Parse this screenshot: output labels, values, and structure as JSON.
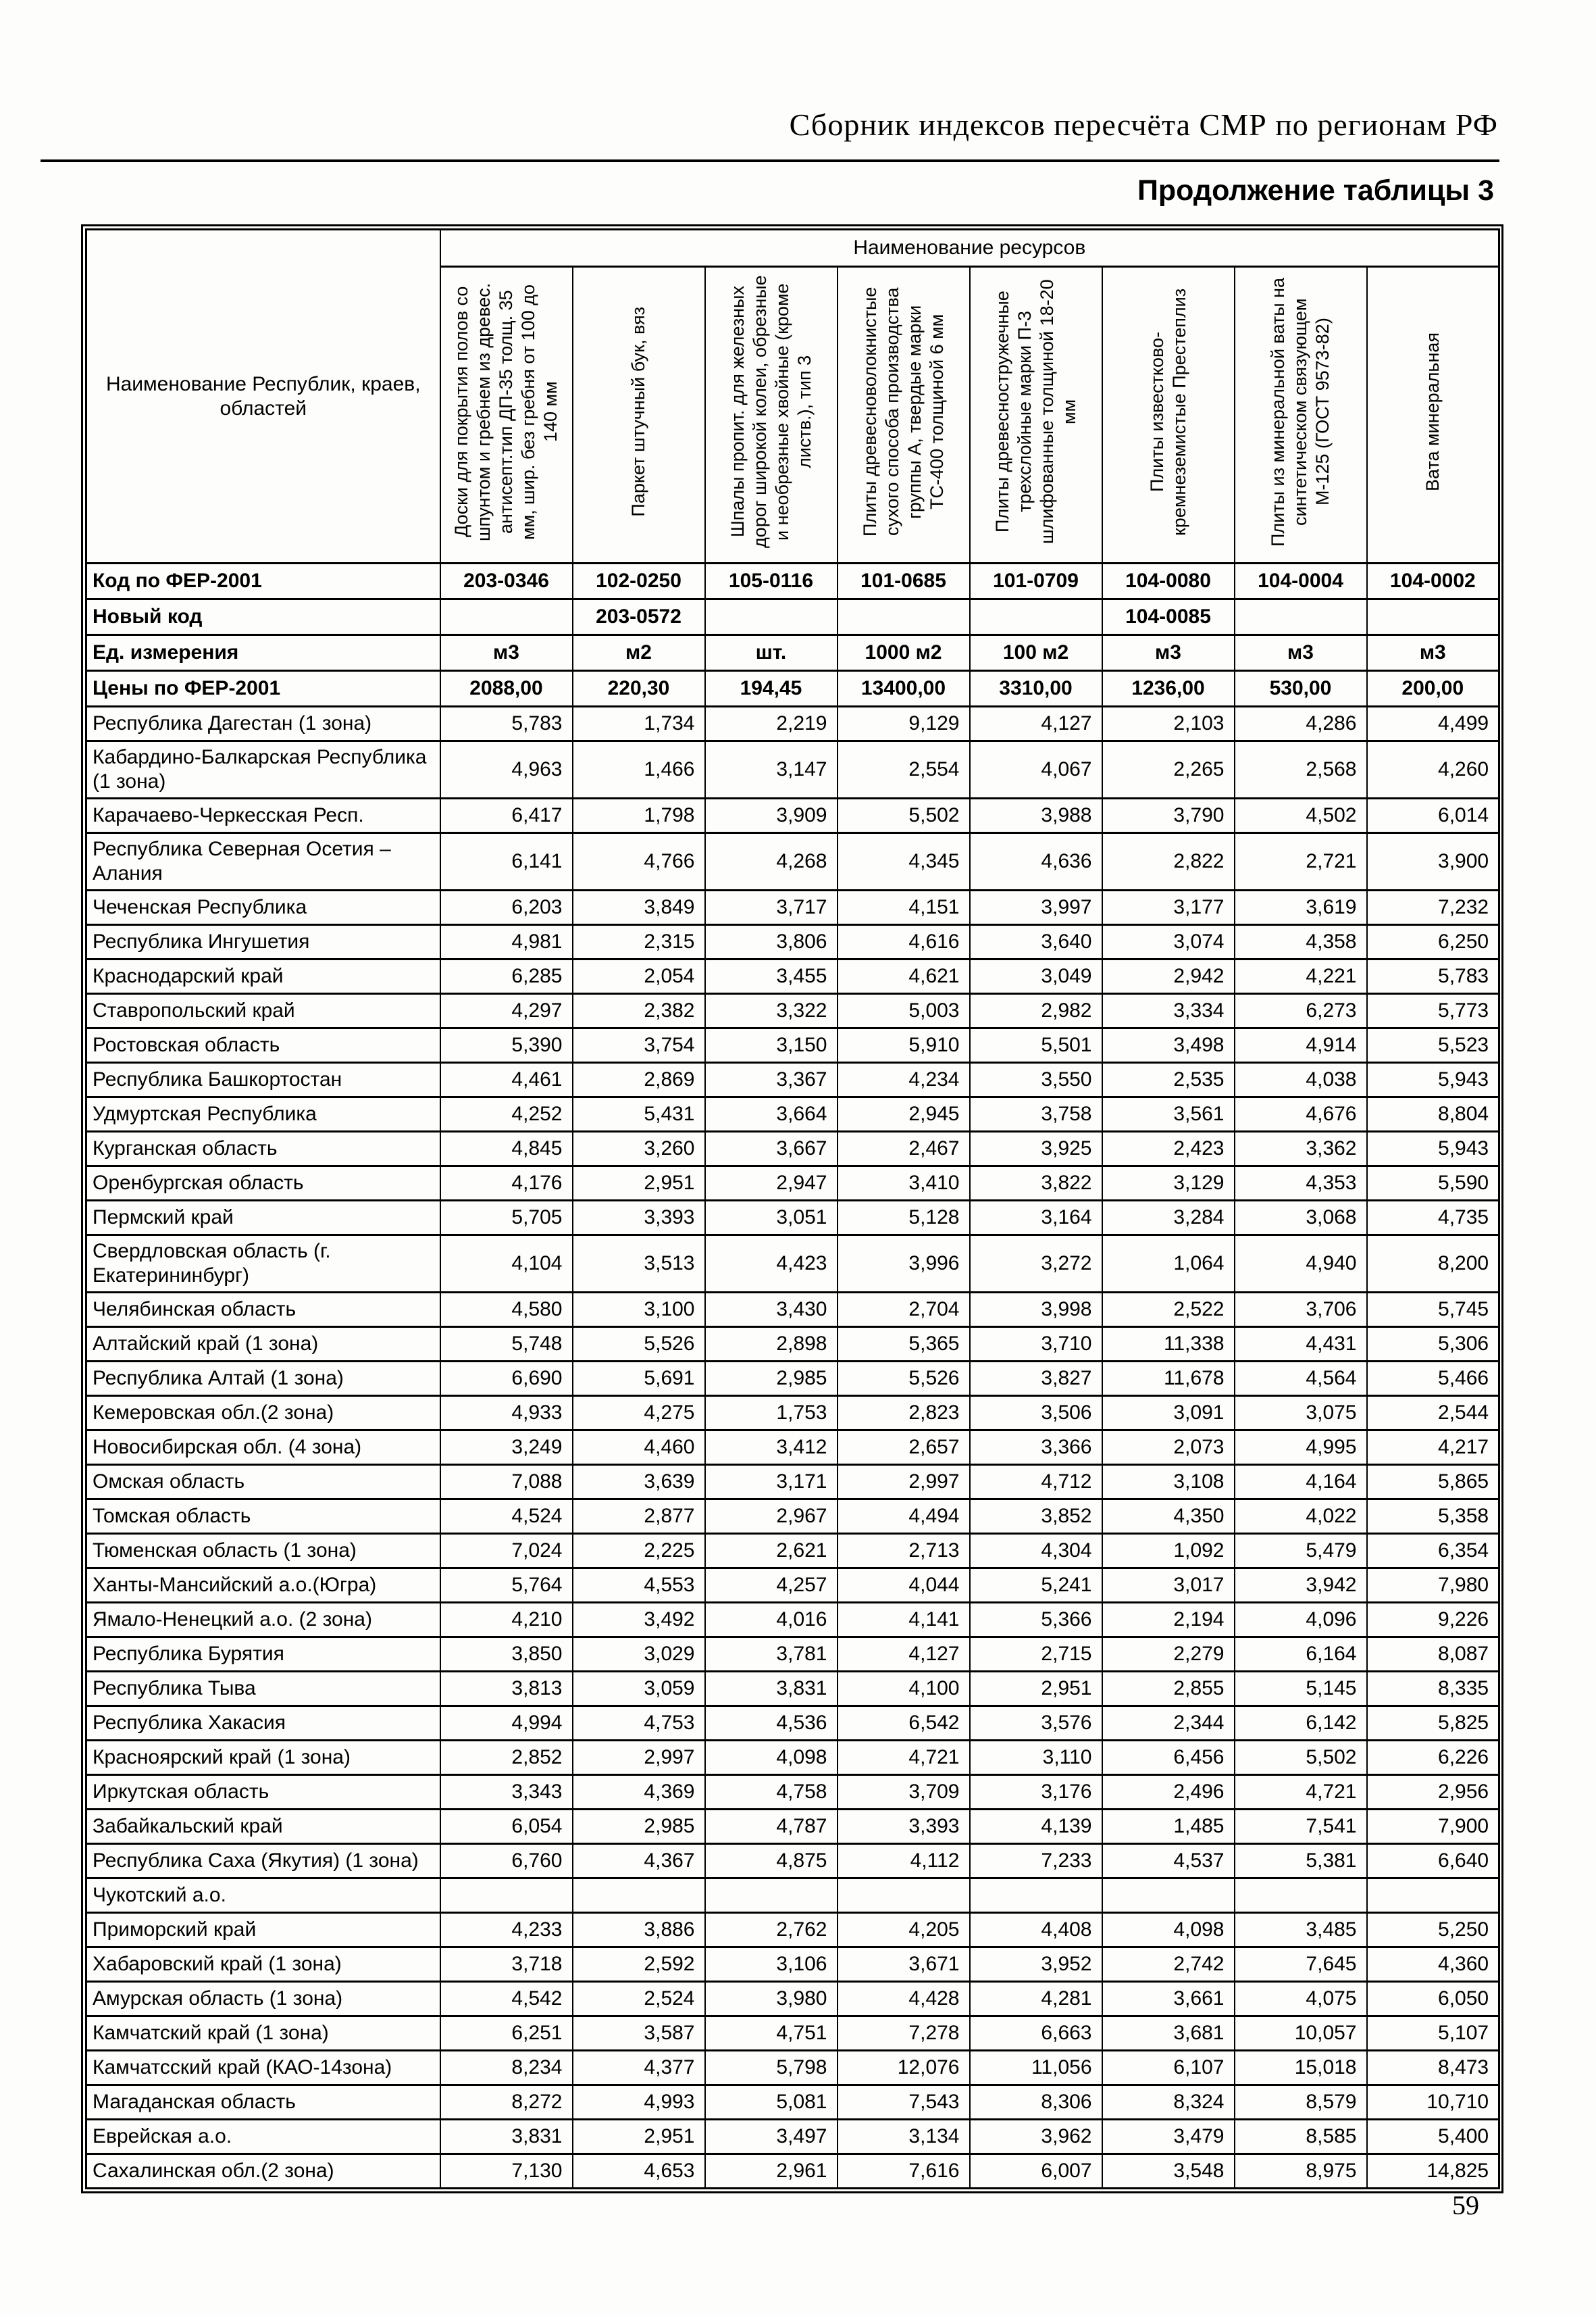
{
  "page": {
    "doc_header": "Сборник индексов пересчёта СМР  по регионам РФ",
    "table_caption": "Продолжение таблицы 3",
    "page_number": "59"
  },
  "table": {
    "region_col_header": "Наименование Республик, краев, областей",
    "resources_header": "Наименование ресурсов",
    "resource_columns": [
      "Доски для покрытия полов со шпунтом и гребнем из древес. антисепт.тип ДП-35 толщ. 35 мм, шир. без гребня от 100 до 140 мм",
      "Паркет штучный бук, вяз",
      "Шпалы пропит. для железных дорог широкой колеи, обрезные и необрезные хвойные (кроме листв.), тип 3",
      "Плиты древесноволокнистые сухого способа производства группы А, твердые марки ТС-400 толщиной 6 мм",
      "Плиты древесностружечные трехслойные марки П-3 шлифованные толщиной 18-20 мм",
      "Плиты известково-кремнеземистые Престеплиз",
      "Плиты из минеральной ваты на синтетическом связующем М-125 (ГОСТ 9573-82)",
      "Вата минеральная"
    ],
    "meta_rows": [
      {
        "label": "Код по ФЕР-2001",
        "values": [
          "203-0346",
          "102-0250",
          "105-0116",
          "101-0685",
          "101-0709",
          "104-0080",
          "104-0004",
          "104-0002"
        ]
      },
      {
        "label": "Новый код",
        "values": [
          "",
          "203-0572",
          "",
          "",
          "",
          "104-0085",
          "",
          ""
        ]
      },
      {
        "label": "Ед. измерения",
        "values": [
          "м3",
          "м2",
          "шт.",
          "1000 м2",
          "100 м2",
          "м3",
          "м3",
          "м3"
        ]
      },
      {
        "label": "Цены по ФЕР-2001",
        "values": [
          "2088,00",
          "220,30",
          "194,45",
          "13400,00",
          "3310,00",
          "1236,00",
          "530,00",
          "200,00"
        ]
      }
    ],
    "rows": [
      {
        "name": "Республика Дагестан (1 зона)",
        "values": [
          "5,783",
          "1,734",
          "2,219",
          "9,129",
          "4,127",
          "2,103",
          "4,286",
          "4,499"
        ]
      },
      {
        "name": "Кабардино-Балкарская Республика (1 зона)",
        "values": [
          "4,963",
          "1,466",
          "3,147",
          "2,554",
          "4,067",
          "2,265",
          "2,568",
          "4,260"
        ]
      },
      {
        "name": "Карачаево-Черкесская Респ.",
        "values": [
          "6,417",
          "1,798",
          "3,909",
          "5,502",
          "3,988",
          "3,790",
          "4,502",
          "6,014"
        ]
      },
      {
        "name": "Республика Северная Осетия – Алания",
        "values": [
          "6,141",
          "4,766",
          "4,268",
          "4,345",
          "4,636",
          "2,822",
          "2,721",
          "3,900"
        ]
      },
      {
        "name": "Чеченская Республика",
        "values": [
          "6,203",
          "3,849",
          "3,717",
          "4,151",
          "3,997",
          "3,177",
          "3,619",
          "7,232"
        ]
      },
      {
        "name": "Республика Ингушетия",
        "values": [
          "4,981",
          "2,315",
          "3,806",
          "4,616",
          "3,640",
          "3,074",
          "4,358",
          "6,250"
        ]
      },
      {
        "name": "Краснодарский край",
        "values": [
          "6,285",
          "2,054",
          "3,455",
          "4,621",
          "3,049",
          "2,942",
          "4,221",
          "5,783"
        ]
      },
      {
        "name": "Ставропольский край",
        "values": [
          "4,297",
          "2,382",
          "3,322",
          "5,003",
          "2,982",
          "3,334",
          "6,273",
          "5,773"
        ]
      },
      {
        "name": "Ростовская область",
        "values": [
          "5,390",
          "3,754",
          "3,150",
          "5,910",
          "5,501",
          "3,498",
          "4,914",
          "5,523"
        ]
      },
      {
        "name": "Республика Башкортостан",
        "values": [
          "4,461",
          "2,869",
          "3,367",
          "4,234",
          "3,550",
          "2,535",
          "4,038",
          "5,943"
        ]
      },
      {
        "name": "Удмуртская Республика",
        "values": [
          "4,252",
          "5,431",
          "3,664",
          "2,945",
          "3,758",
          "3,561",
          "4,676",
          "8,804"
        ]
      },
      {
        "name": "Курганская область",
        "values": [
          "4,845",
          "3,260",
          "3,667",
          "2,467",
          "3,925",
          "2,423",
          "3,362",
          "5,943"
        ]
      },
      {
        "name": "Оренбургская область",
        "values": [
          "4,176",
          "2,951",
          "2,947",
          "3,410",
          "3,822",
          "3,129",
          "4,353",
          "5,590"
        ]
      },
      {
        "name": "Пермский край",
        "values": [
          "5,705",
          "3,393",
          "3,051",
          "5,128",
          "3,164",
          "3,284",
          "3,068",
          "4,735"
        ]
      },
      {
        "name": "Свердловская область (г. Екатерининбург)",
        "values": [
          "4,104",
          "3,513",
          "4,423",
          "3,996",
          "3,272",
          "1,064",
          "4,940",
          "8,200"
        ]
      },
      {
        "name": "Челябинская область",
        "values": [
          "4,580",
          "3,100",
          "3,430",
          "2,704",
          "3,998",
          "2,522",
          "3,706",
          "5,745"
        ]
      },
      {
        "name": "Алтайский край (1 зона)",
        "values": [
          "5,748",
          "5,526",
          "2,898",
          "5,365",
          "3,710",
          "11,338",
          "4,431",
          "5,306"
        ]
      },
      {
        "name": "Республика Алтай (1 зона)",
        "values": [
          "6,690",
          "5,691",
          "2,985",
          "5,526",
          "3,827",
          "11,678",
          "4,564",
          "5,466"
        ]
      },
      {
        "name": "Кемеровская обл.(2 зона)",
        "values": [
          "4,933",
          "4,275",
          "1,753",
          "2,823",
          "3,506",
          "3,091",
          "3,075",
          "2,544"
        ]
      },
      {
        "name": "Новосибирская обл. (4 зона)",
        "values": [
          "3,249",
          "4,460",
          "3,412",
          "2,657",
          "3,366",
          "2,073",
          "4,995",
          "4,217"
        ]
      },
      {
        "name": "Омская область",
        "values": [
          "7,088",
          "3,639",
          "3,171",
          "2,997",
          "4,712",
          "3,108",
          "4,164",
          "5,865"
        ]
      },
      {
        "name": "Томская область",
        "values": [
          "4,524",
          "2,877",
          "2,967",
          "4,494",
          "3,852",
          "4,350",
          "4,022",
          "5,358"
        ]
      },
      {
        "name": "Тюменская область (1 зона)",
        "values": [
          "7,024",
          "2,225",
          "2,621",
          "2,713",
          "4,304",
          "1,092",
          "5,479",
          "6,354"
        ]
      },
      {
        "name": "Ханты-Мансийский а.о.(Югра)",
        "values": [
          "5,764",
          "4,553",
          "4,257",
          "4,044",
          "5,241",
          "3,017",
          "3,942",
          "7,980"
        ]
      },
      {
        "name": "Ямало-Ненецкий а.о. (2 зона)",
        "values": [
          "4,210",
          "3,492",
          "4,016",
          "4,141",
          "5,366",
          "2,194",
          "4,096",
          "9,226"
        ]
      },
      {
        "name": "Республика Бурятия",
        "values": [
          "3,850",
          "3,029",
          "3,781",
          "4,127",
          "2,715",
          "2,279",
          "6,164",
          "8,087"
        ]
      },
      {
        "name": "Республика Тыва",
        "values": [
          "3,813",
          "3,059",
          "3,831",
          "4,100",
          "2,951",
          "2,855",
          "5,145",
          "8,335"
        ]
      },
      {
        "name": "Республика Хакасия",
        "values": [
          "4,994",
          "4,753",
          "4,536",
          "6,542",
          "3,576",
          "2,344",
          "6,142",
          "5,825"
        ]
      },
      {
        "name": "Красноярский край (1 зона)",
        "values": [
          "2,852",
          "2,997",
          "4,098",
          "4,721",
          "3,110",
          "6,456",
          "5,502",
          "6,226"
        ]
      },
      {
        "name": "Иркутская область",
        "values": [
          "3,343",
          "4,369",
          "4,758",
          "3,709",
          "3,176",
          "2,496",
          "4,721",
          "2,956"
        ]
      },
      {
        "name": "Забайкальский край",
        "values": [
          "6,054",
          "2,985",
          "4,787",
          "3,393",
          "4,139",
          "1,485",
          "7,541",
          "7,900"
        ]
      },
      {
        "name": "Республика Саха (Якутия) (1 зона)",
        "values": [
          "6,760",
          "4,367",
          "4,875",
          "4,112",
          "7,233",
          "4,537",
          "5,381",
          "6,640"
        ]
      },
      {
        "name": "Чукотский а.о.",
        "values": [
          "",
          "",
          "",
          "",
          "",
          "",
          "",
          ""
        ]
      },
      {
        "name": "Приморский край",
        "values": [
          "4,233",
          "3,886",
          "2,762",
          "4,205",
          "4,408",
          "4,098",
          "3,485",
          "5,250"
        ]
      },
      {
        "name": "Хабаровский край (1 зона)",
        "values": [
          "3,718",
          "2,592",
          "3,106",
          "3,671",
          "3,952",
          "2,742",
          "7,645",
          "4,360"
        ]
      },
      {
        "name": "Амурская область (1 зона)",
        "values": [
          "4,542",
          "2,524",
          "3,980",
          "4,428",
          "4,281",
          "3,661",
          "4,075",
          "6,050"
        ]
      },
      {
        "name": "Камчатский край (1 зона)",
        "values": [
          "6,251",
          "3,587",
          "4,751",
          "7,278",
          "6,663",
          "3,681",
          "10,057",
          "5,107"
        ]
      },
      {
        "name": "Камчатсский край (КАО-14зона)",
        "values": [
          "8,234",
          "4,377",
          "5,798",
          "12,076",
          "11,056",
          "6,107",
          "15,018",
          "8,473"
        ]
      },
      {
        "name": "Магаданская область",
        "values": [
          "8,272",
          "4,993",
          "5,081",
          "7,543",
          "8,306",
          "8,324",
          "8,579",
          "10,710"
        ]
      },
      {
        "name": "Еврейская а.о.",
        "values": [
          "3,831",
          "2,951",
          "3,497",
          "3,134",
          "3,962",
          "3,479",
          "8,585",
          "5,400"
        ]
      },
      {
        "name": "Сахалинская обл.(2 зона)",
        "values": [
          "7,130",
          "4,653",
          "2,961",
          "7,616",
          "6,007",
          "3,548",
          "8,975",
          "14,825"
        ]
      }
    ]
  }
}
